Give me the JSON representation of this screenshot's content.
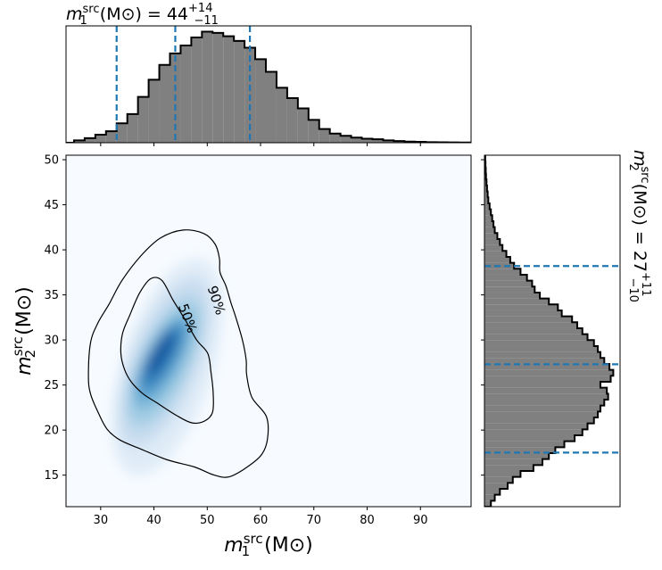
{
  "chart_data": [
    {
      "panel": "m1-marginal",
      "type": "histogram",
      "title": "m1src (M⊙) = 44 +14 −11",
      "title_parts": {
        "symbol": "m",
        "sup": "src",
        "sub": "1",
        "unit": "(M⊙)",
        "eq": "=",
        "median": "44",
        "plus": "+14",
        "minus": "−11"
      },
      "bin_start": 23,
      "bin_width": 2,
      "density": [
        0.0,
        0.02,
        0.04,
        0.07,
        0.1,
        0.17,
        0.25,
        0.4,
        0.55,
        0.68,
        0.78,
        0.85,
        0.92,
        0.97,
        0.96,
        0.93,
        0.89,
        0.83,
        0.73,
        0.62,
        0.48,
        0.39,
        0.3,
        0.2,
        0.12,
        0.08,
        0.06,
        0.045,
        0.035,
        0.03,
        0.02,
        0.015,
        0.01,
        0.008,
        0.005,
        0.004,
        0.003,
        0.002,
        0.002
      ],
      "quantiles": [
        33,
        44,
        58
      ],
      "xlim": [
        23.5,
        99.5
      ],
      "color": "#808080",
      "line_color": "#1f77b4"
    },
    {
      "panel": "joint",
      "type": "heatmap",
      "xlabel": "m1src (M⊙)",
      "xlabel_parts": {
        "symbol": "m",
        "sup": "src",
        "sub": "1",
        "unit": "(M⊙)"
      },
      "ylabel": "m2src (M⊙)",
      "ylabel_parts": {
        "symbol": "m",
        "sup": "src",
        "sub": "2",
        "unit": "(M⊙)"
      },
      "xlim": [
        23.5,
        99.5
      ],
      "ylim": [
        11.5,
        50.5
      ],
      "xticks": [
        30,
        40,
        50,
        60,
        70,
        80,
        90
      ],
      "yticks": [
        15,
        20,
        25,
        30,
        35,
        40,
        45,
        50
      ],
      "peak": [
        41.5,
        28.0
      ],
      "colormap": "Blues",
      "contours": [
        {
          "label": "90%",
          "label_at": [
            51.7,
            34.4
          ],
          "label_rotation": 72,
          "points": [
            [
              27.7,
              26.0
            ],
            [
              28.1,
              29.7
            ],
            [
              29.5,
              31.9
            ],
            [
              31.6,
              34.0
            ],
            [
              34.0,
              36.6
            ],
            [
              37.5,
              39.3
            ],
            [
              41.2,
              41.3
            ],
            [
              45.5,
              42.2
            ],
            [
              49.4,
              41.8
            ],
            [
              51.5,
              40.6
            ],
            [
              52.3,
              39.0
            ],
            [
              52.4,
              37.5
            ],
            [
              53.5,
              36.0
            ],
            [
              54.4,
              34.2
            ],
            [
              55.3,
              32.6
            ],
            [
              56.6,
              30.0
            ],
            [
              57.3,
              27.8
            ],
            [
              57.4,
              26.1
            ],
            [
              58.4,
              23.6
            ],
            [
              61.1,
              21.5
            ],
            [
              61.3,
              19.0
            ],
            [
              60.1,
              17.2
            ],
            [
              57.0,
              15.7
            ],
            [
              54.0,
              14.8
            ],
            [
              51.3,
              15.0
            ],
            [
              47.6,
              15.9
            ],
            [
              42.5,
              16.7
            ],
            [
              37.5,
              17.9
            ],
            [
              33.6,
              18.9
            ],
            [
              31.2,
              20.1
            ],
            [
              29.5,
              22.0
            ],
            [
              28.1,
              24.0
            ]
          ]
        },
        {
          "label": "50%",
          "label_at": [
            46.3,
            32.4
          ],
          "label_rotation": 70,
          "points": [
            [
              33.8,
              28.5
            ],
            [
              34.1,
              30.7
            ],
            [
              35.5,
              32.8
            ],
            [
              37.3,
              35.2
            ],
            [
              39.4,
              36.8
            ],
            [
              41.5,
              36.6
            ],
            [
              43.6,
              34.4
            ],
            [
              45.9,
              32.2
            ],
            [
              48.0,
              30.0
            ],
            [
              50.1,
              28.5
            ],
            [
              50.7,
              26.4
            ],
            [
              51.1,
              24.2
            ],
            [
              51.0,
              22.0
            ],
            [
              49.5,
              21.0
            ],
            [
              47.1,
              20.8
            ],
            [
              44.3,
              21.6
            ],
            [
              40.6,
              23.0
            ],
            [
              38.0,
              24.0
            ],
            [
              35.8,
              25.3
            ],
            [
              34.5,
              26.7
            ]
          ]
        }
      ]
    },
    {
      "panel": "m2-marginal",
      "type": "histogram",
      "orientation": "horizontal",
      "title": "m2src (M⊙) = 27 +11 −10",
      "title_parts": {
        "symbol": "m",
        "sup": "src",
        "sub": "2",
        "unit": "(M⊙)",
        "eq": "=",
        "median": "27",
        "plus": "+11",
        "minus": "−10"
      },
      "bin_start": 11.5,
      "bin_width": 0.66,
      "density": [
        0.05,
        0.08,
        0.12,
        0.18,
        0.22,
        0.28,
        0.38,
        0.45,
        0.5,
        0.55,
        0.62,
        0.7,
        0.76,
        0.8,
        0.85,
        0.88,
        0.9,
        0.93,
        0.96,
        0.95,
        0.9,
        0.98,
        1.0,
        0.97,
        0.93,
        0.9,
        0.88,
        0.85,
        0.8,
        0.76,
        0.72,
        0.68,
        0.6,
        0.57,
        0.5,
        0.43,
        0.39,
        0.37,
        0.33,
        0.28,
        0.23,
        0.2,
        0.17,
        0.14,
        0.12,
        0.1,
        0.08,
        0.07,
        0.06,
        0.05,
        0.04,
        0.03,
        0.025,
        0.02,
        0.016,
        0.012,
        0.01,
        0.008,
        0.006
      ],
      "quantiles": [
        17.5,
        27.3,
        38.2
      ],
      "ylim": [
        11.5,
        50.5
      ],
      "color": "#808080",
      "line_color": "#1f77b4"
    }
  ]
}
